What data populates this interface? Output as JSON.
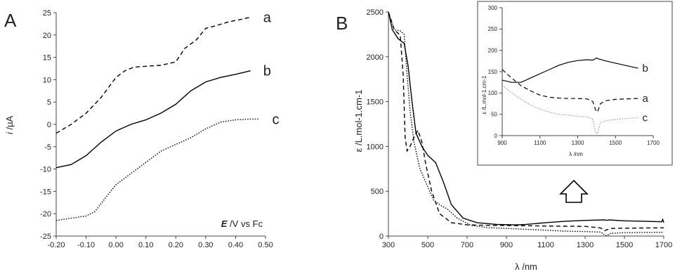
{
  "chart_data": [
    {
      "panel": "A",
      "type": "line",
      "annotation_prefix": "E",
      "annotation_suffix": " /V vs Fc",
      "ylabel_prefix": "i",
      "ylabel_suffix": " /µA",
      "xlim": [
        -0.2,
        0.5
      ],
      "ylim": [
        -25,
        25
      ],
      "xticks": [
        "-0.20",
        "-0.10",
        "0.00",
        "0.10",
        "0.20",
        "0.30",
        "0.40",
        "0.50"
      ],
      "xtick_values": [
        -0.2,
        -0.1,
        0.0,
        0.1,
        0.2,
        0.3,
        0.4,
        0.5
      ],
      "yticks": [
        "25",
        "20",
        "15",
        "10",
        "5",
        "0",
        "-5",
        "-10",
        "-15",
        "-20",
        "-25"
      ],
      "ytick_values": [
        25,
        20,
        15,
        10,
        5,
        0,
        -5,
        -10,
        -15,
        -20,
        -25
      ],
      "series": [
        {
          "name": "a",
          "style": "dashed",
          "color": "#000000",
          "x": [
            -0.2,
            -0.15,
            -0.1,
            -0.05,
            0.0,
            0.03,
            0.06,
            0.1,
            0.15,
            0.2,
            0.23,
            0.27,
            0.3,
            0.33,
            0.38,
            0.42,
            0.45
          ],
          "y": [
            -2,
            0,
            2.5,
            6,
            10.5,
            12,
            12.8,
            13,
            13.2,
            14,
            17,
            19,
            21.5,
            22,
            23,
            23.5,
            24
          ]
        },
        {
          "name": "b",
          "style": "solid",
          "color": "#000000",
          "x": [
            -0.2,
            -0.15,
            -0.1,
            -0.05,
            0.0,
            0.05,
            0.1,
            0.15,
            0.2,
            0.25,
            0.3,
            0.35,
            0.4,
            0.45
          ],
          "y": [
            -9.7,
            -9,
            -7,
            -4,
            -1.5,
            0,
            1,
            2.5,
            4.5,
            7.5,
            9.5,
            10.5,
            11.2,
            12
          ]
        },
        {
          "name": "c",
          "style": "dotted",
          "color": "#000000",
          "x": [
            -0.2,
            -0.15,
            -0.1,
            -0.07,
            -0.03,
            0.0,
            0.05,
            0.1,
            0.15,
            0.2,
            0.25,
            0.3,
            0.35,
            0.4,
            0.45,
            0.48
          ],
          "y": [
            -21.5,
            -21,
            -20.5,
            -19.5,
            -16,
            -13.5,
            -11,
            -8.5,
            -6,
            -4.5,
            -3,
            -1,
            0.5,
            1,
            1.2,
            1.2
          ]
        }
      ]
    },
    {
      "panel": "B",
      "type": "line",
      "xlabel": "λ /nm",
      "ylabel": "ε /L.mol-1.cm-1",
      "xlim": [
        300,
        1700
      ],
      "ylim": [
        0,
        2500
      ],
      "xticks": [
        "300",
        "500",
        "700",
        "900",
        "1100",
        "1300",
        "1500",
        "1700"
      ],
      "xtick_values": [
        300,
        500,
        700,
        900,
        1100,
        1300,
        1500,
        1700
      ],
      "yticks": [
        "2500",
        "2000",
        "1500",
        "1000",
        "500",
        "0"
      ],
      "ytick_values": [
        2500,
        2000,
        1500,
        1000,
        500,
        0
      ],
      "series": [
        {
          "name": "b",
          "style": "solid",
          "color": "#000000",
          "x": [
            300,
            320,
            350,
            380,
            400,
            420,
            440,
            470,
            500,
            540,
            580,
            620,
            680,
            750,
            850,
            950,
            1000,
            1100,
            1200,
            1300,
            1400,
            1410,
            1420,
            1500,
            1600,
            1690,
            1695,
            1700
          ],
          "y": [
            2500,
            2300,
            2200,
            2150,
            1900,
            1500,
            1150,
            1000,
            900,
            820,
            600,
            350,
            200,
            150,
            130,
            125,
            130,
            150,
            165,
            175,
            180,
            175,
            180,
            170,
            165,
            160,
            185,
            150
          ]
        },
        {
          "name": "a",
          "style": "dashed",
          "color": "#000000",
          "x": [
            300,
            330,
            360,
            375,
            385,
            395,
            410,
            430,
            450,
            470,
            490,
            520,
            560,
            620,
            700,
            800,
            900,
            1000,
            1100,
            1200,
            1300,
            1380,
            1400,
            1410,
            1430,
            1500,
            1600,
            1700
          ],
          "y": [
            2500,
            2300,
            2240,
            1800,
            1100,
            950,
            1000,
            1100,
            1180,
            1050,
            800,
            500,
            250,
            150,
            125,
            120,
            118,
            115,
            112,
            110,
            108,
            90,
            60,
            70,
            85,
            88,
            90,
            92
          ]
        },
        {
          "name": "c",
          "style": "dotted",
          "color": "#000000",
          "x": [
            300,
            330,
            360,
            380,
            395,
            410,
            430,
            460,
            500,
            530,
            560,
            600,
            650,
            720,
            800,
            900,
            1000,
            1100,
            1200,
            1300,
            1380,
            1400,
            1410,
            1430,
            1500,
            1600,
            1700
          ],
          "y": [
            2500,
            2300,
            2290,
            2250,
            1800,
            1400,
            1050,
            750,
            550,
            400,
            350,
            300,
            200,
            120,
            95,
            85,
            75,
            65,
            55,
            50,
            45,
            10,
            5,
            30,
            38,
            40,
            42
          ]
        }
      ],
      "inset": {
        "xlabel": "λ /nm",
        "ylabel": "ε /L.mol-1.cm-1",
        "xlim": [
          900,
          1700
        ],
        "ylim": [
          0,
          300
        ],
        "xticks": [
          "900",
          "1100",
          "1300",
          "1500",
          "1700"
        ],
        "xtick_values": [
          900,
          1100,
          1300,
          1500,
          1700
        ],
        "yticks": [
          "300",
          "250",
          "200",
          "150",
          "100",
          "50",
          "0"
        ],
        "ytick_values": [
          300,
          250,
          200,
          150,
          100,
          50,
          0
        ],
        "series": [
          {
            "name": "b",
            "style": "solid",
            "color": "#000000",
            "x": [
              900,
              950,
              1000,
              1050,
              1100,
              1150,
              1200,
              1250,
              1300,
              1350,
              1380,
              1400,
              1410,
              1450,
              1500,
              1550,
              1600,
              1620
            ],
            "y": [
              130,
              125,
              125,
              135,
              145,
              155,
              165,
              172,
              176,
              178,
              177,
              182,
              180,
              175,
              170,
              165,
              160,
              158
            ]
          },
          {
            "name": "a",
            "style": "dashed",
            "color": "#000000",
            "x": [
              900,
              950,
              1000,
              1050,
              1100,
              1150,
              1200,
              1250,
              1300,
              1350,
              1380,
              1395,
              1405,
              1420,
              1450,
              1500,
              1550,
              1620
            ],
            "y": [
              155,
              135,
              117,
              105,
              95,
              90,
              88,
              87,
              87,
              86,
              80,
              60,
              55,
              75,
              82,
              85,
              86,
              87
            ]
          },
          {
            "name": "c",
            "style": "dotted",
            "color": "#999999",
            "x": [
              900,
              950,
              1000,
              1050,
              1100,
              1150,
              1200,
              1250,
              1300,
              1350,
              1380,
              1395,
              1405,
              1420,
              1450,
              1500,
              1550,
              1620
            ],
            "y": [
              118,
              100,
              85,
              72,
              62,
              55,
              50,
              48,
              45,
              44,
              38,
              8,
              5,
              30,
              35,
              38,
              40,
              42
            ]
          }
        ]
      }
    }
  ]
}
